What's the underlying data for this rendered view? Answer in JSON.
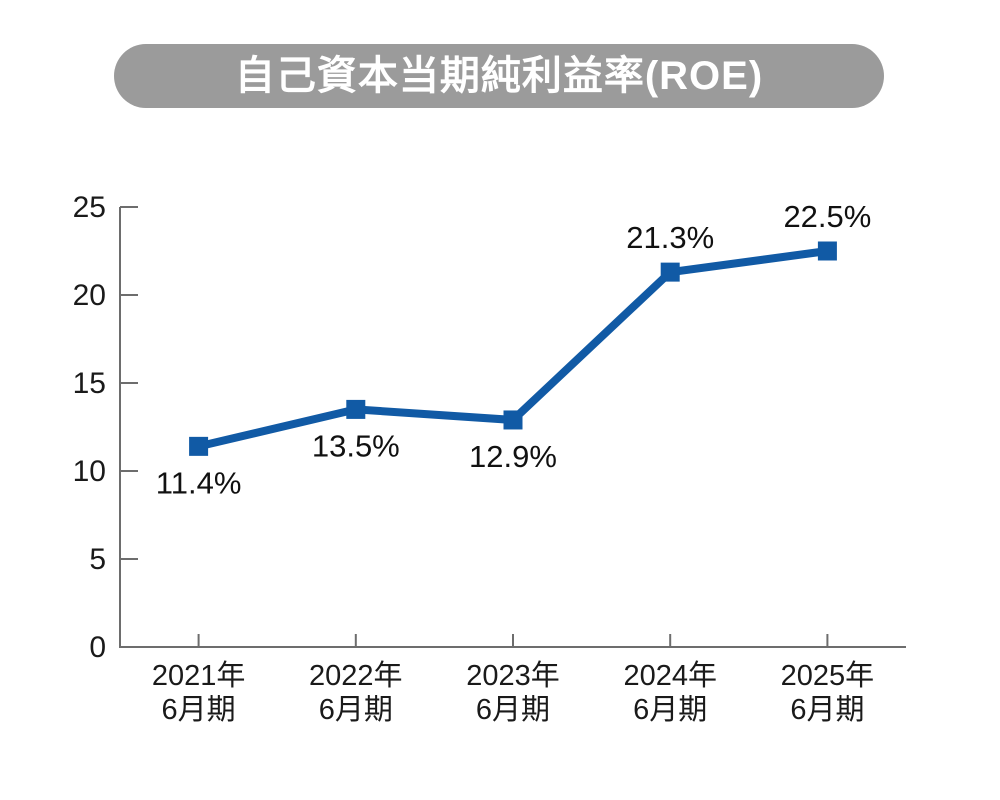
{
  "header": {
    "pill_color": "#9b9b9b",
    "title_color": "#ffffff"
  },
  "chart_data": {
    "type": "line",
    "title": "自己資本当期純利益率(ROE)",
    "categories": [
      [
        "2021年",
        "6月期"
      ],
      [
        "2022年",
        "6月期"
      ],
      [
        "2023年",
        "6月期"
      ],
      [
        "2024年",
        "6月期"
      ],
      [
        "2025年",
        "6月期"
      ]
    ],
    "values": [
      11.4,
      13.5,
      12.9,
      21.3,
      22.5
    ],
    "point_labels": [
      "11.4%",
      "13.5%",
      "12.9%",
      "21.3%",
      "22.5%"
    ],
    "point_label_positions": [
      "below",
      "below",
      "below",
      "above",
      "above"
    ],
    "unit": "%",
    "ylim": [
      0,
      25
    ],
    "yticks": [
      0,
      5,
      10,
      15,
      20,
      25
    ],
    "grid": false,
    "legend": "none",
    "line_color": "#115aa5",
    "marker": "square",
    "axis_color": "#6d6d6d",
    "label_text_color": "#111111",
    "tick_text_color": "#1a1a1a"
  }
}
